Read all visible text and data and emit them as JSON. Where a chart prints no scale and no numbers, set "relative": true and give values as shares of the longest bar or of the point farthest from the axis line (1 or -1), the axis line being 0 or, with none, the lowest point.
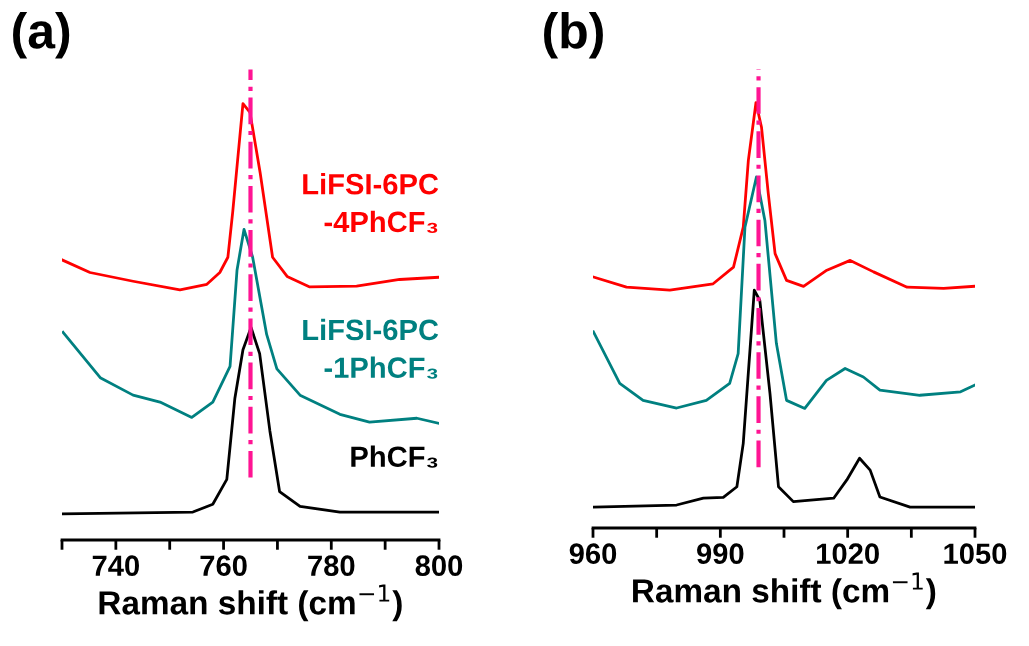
{
  "chart_data": [
    {
      "type": "line",
      "title": "(a)",
      "xlabel": "Raman shift (cm$^{−1}$)",
      "relative": true,
      "xlim": [
        730,
        800
      ],
      "xticks": [
        {
          "value": 730,
          "label": null
        },
        740,
        {
          "value": 750,
          "label": null
        },
        760,
        {
          "value": 770,
          "label": null
        },
        780,
        {
          "value": 790,
          "label": null
        },
        800
      ],
      "tick_labels": "x",
      "grid": false,
      "legend": false,
      "ref_lines": [
        {
          "axis": "x",
          "value": 765,
          "color": "#ff1493",
          "line_style": "dashdot"
        }
      ],
      "series": [
        {
          "name": "LiFSI-6PC\n-4PhCF₃",
          "color": "#ff0000",
          "x": [
            730,
            735.2,
            743.2,
            751.9,
            756.9,
            759.3,
            760.8,
            761.7,
            763.6,
            764.9,
            766.8,
            769.1,
            771.8,
            776.0,
            784.7,
            792.7,
            799.8
          ],
          "values": [
            0.642,
            0.613,
            0.593,
            0.573,
            0.586,
            0.613,
            0.648,
            0.752,
            1.0,
            0.98,
            0.841,
            0.648,
            0.604,
            0.58,
            0.582,
            0.597,
            0.602
          ]
        },
        {
          "name": "LiFSI-6PC\n-1PhCF₃",
          "color": "#008080",
          "x": [
            730.2,
            737.1,
            743.2,
            748.2,
            754.1,
            758.0,
            761.2,
            762.5,
            763.8,
            765.4,
            768.0,
            769.9,
            774.2,
            781.6,
            787.1,
            795.9,
            799.8
          ],
          "values": [
            0.476,
            0.372,
            0.332,
            0.316,
            0.281,
            0.316,
            0.398,
            0.619,
            0.712,
            0.648,
            0.471,
            0.392,
            0.332,
            0.288,
            0.27,
            0.279,
            0.268
          ]
        },
        {
          "name": "PhCF₃",
          "color": "#000000",
          "x": [
            730,
            754.3,
            758.0,
            760.6,
            762.1,
            763.6,
            765.1,
            766.7,
            768.6,
            770.4,
            774.2,
            781.6,
            799.8
          ],
          "values": [
            0.06,
            0.064,
            0.082,
            0.139,
            0.325,
            0.436,
            0.487,
            0.427,
            0.25,
            0.111,
            0.077,
            0.064,
            0.064
          ]
        }
      ]
    },
    {
      "type": "line",
      "title": "(b)",
      "xlabel": "Raman shift (cm$^{−1}$)",
      "relative": true,
      "xlim": [
        960,
        1050
      ],
      "xticks": [
        960,
        {
          "value": 975,
          "label": null
        },
        990,
        {
          "value": 1005,
          "label": null
        },
        1020,
        {
          "value": 1035,
          "label": null
        },
        1050
      ],
      "tick_labels": "x",
      "grid": false,
      "legend": false,
      "ref_lines": [
        {
          "axis": "x",
          "value": 999,
          "color": "#ff1493",
          "line_style": "dashdot"
        }
      ],
      "series": [
        {
          "color": "#ff0000",
          "x": [
            960.1,
            967.9,
            978.1,
            988.3,
            993.1,
            995.4,
            996.6,
            998.4,
            999.7,
            1001.3,
            1002.9,
            1005.6,
            1009.6,
            1015.1,
            1020.6,
            1026.1,
            1034.0,
            1042.6,
            1049.7
          ],
          "values": [
            0.59,
            0.566,
            0.559,
            0.574,
            0.613,
            0.707,
            0.864,
            1.0,
            0.942,
            0.786,
            0.645,
            0.582,
            0.568,
            0.606,
            0.629,
            0.602,
            0.566,
            0.563,
            0.568
          ]
        },
        {
          "color": "#008080",
          "x": [
            960.1,
            966.3,
            971.8,
            979.7,
            986.7,
            992.2,
            994.2,
            995.8,
            998.5,
            1000.5,
            1003.2,
            1005.6,
            1009.9,
            1015.0,
            1019.4,
            1023.7,
            1027.6,
            1037.0,
            1046.6,
            1050
          ],
          "values": [
            0.461,
            0.34,
            0.3,
            0.282,
            0.3,
            0.34,
            0.41,
            0.707,
            0.825,
            0.723,
            0.434,
            0.3,
            0.281,
            0.347,
            0.375,
            0.355,
            0.324,
            0.312,
            0.32,
            0.336
          ]
        },
        {
          "color": "#000000",
          "x": [
            960.1,
            979.7,
            986.0,
            990.7,
            993.9,
            995.4,
            998.0,
            999.3,
            1001.7,
            1003.7,
            1007.2,
            1016.7,
            1019.8,
            1022.8,
            1025.3,
            1027.6,
            1034.7,
            1050
          ],
          "values": [
            0.049,
            0.054,
            0.07,
            0.072,
            0.097,
            0.199,
            0.559,
            0.535,
            0.316,
            0.097,
            0.062,
            0.07,
            0.113,
            0.164,
            0.136,
            0.073,
            0.049,
            0.049
          ]
        }
      ]
    }
  ]
}
